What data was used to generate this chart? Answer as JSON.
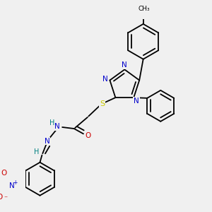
{
  "background_color": "#f0f0f0",
  "bond_color": "#000000",
  "atom_colors": {
    "N": "#0000cc",
    "O": "#cc0000",
    "S": "#cccc00",
    "H": "#008080",
    "C": "#000000"
  },
  "fig_width": 3.0,
  "fig_height": 3.0,
  "dpi": 100
}
